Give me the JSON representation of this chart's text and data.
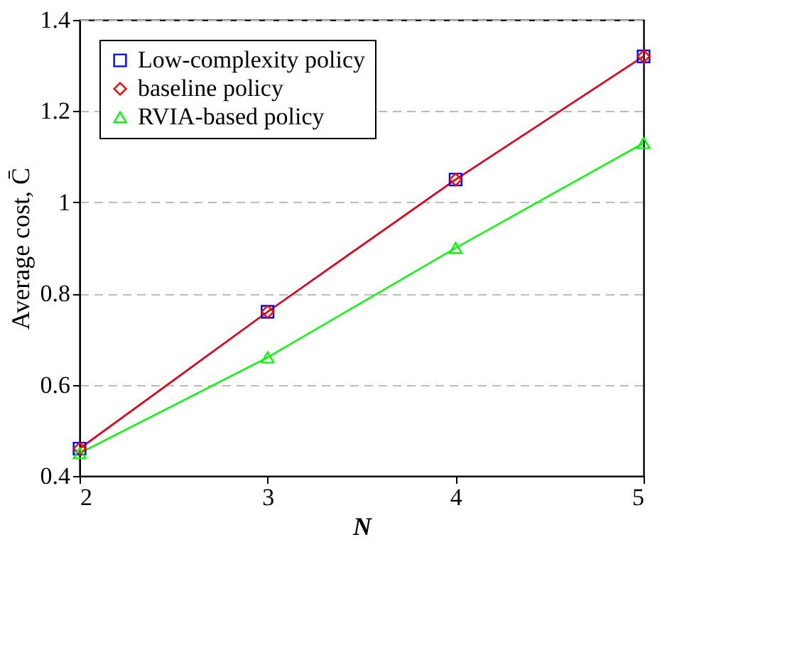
{
  "chart_data": {
    "type": "line",
    "xlabel": "N",
    "ylabel": "Average cost, C̄",
    "x": [
      2,
      3,
      4,
      5
    ],
    "series": [
      {
        "name": "Low-complexity policy",
        "color": "#0000ff",
        "marker": "square",
        "values": [
          0.46,
          0.76,
          1.05,
          1.32
        ]
      },
      {
        "name": "baseline policy",
        "color": "#ff0000",
        "marker": "diamond",
        "values": [
          0.46,
          0.76,
          1.05,
          1.32
        ]
      },
      {
        "name": "RVIA-based policy",
        "color": "#00ff00",
        "marker": "triangle",
        "values": [
          0.45,
          0.66,
          0.9,
          1.13
        ]
      }
    ],
    "xlim": [
      2,
      5
    ],
    "xticks": [
      2,
      3,
      4,
      5
    ],
    "ylim": [
      0.4,
      1.4
    ],
    "yticks": [
      0.4,
      0.6,
      0.8,
      1,
      1.2,
      1.4
    ],
    "grid": "y",
    "legend": "top left",
    "line_style": "solid"
  }
}
